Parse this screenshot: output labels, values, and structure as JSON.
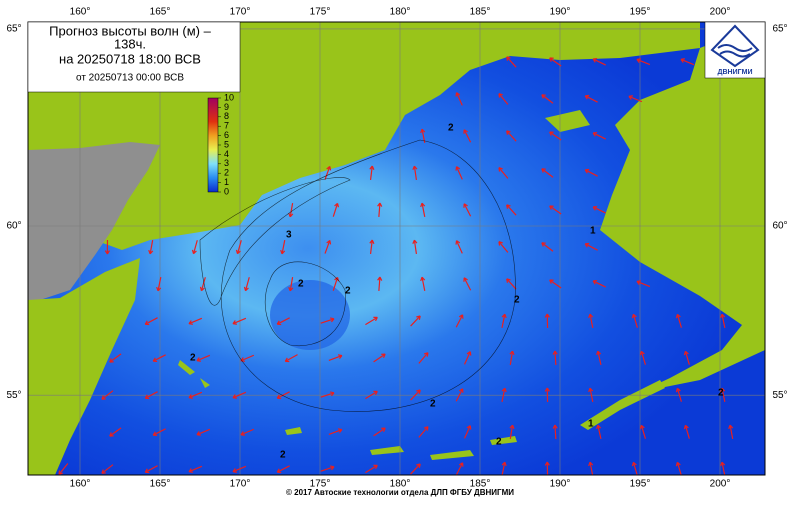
{
  "header": {
    "title_lines": [
      "Прогноз высоты волн (м) –",
      "138ч.",
      "на 20250718 18:00 ВСВ",
      "от 20250713 00:00 ВСВ"
    ]
  },
  "colorbar": {
    "ticks": [
      10,
      9,
      8,
      7,
      6,
      5,
      4,
      3,
      2,
      1,
      0
    ]
  },
  "grid": {
    "lon": [
      {
        "value": 160,
        "label": "160°"
      },
      {
        "value": 165,
        "label": "165°"
      },
      {
        "value": 170,
        "label": "170°"
      },
      {
        "value": 175,
        "label": "175°"
      },
      {
        "value": 180,
        "label": "180°"
      },
      {
        "value": 185,
        "label": "185°"
      },
      {
        "value": 190,
        "label": "190°"
      },
      {
        "value": 195,
        "label": "195°"
      },
      {
        "value": 200,
        "label": "200°"
      }
    ],
    "lat": [
      {
        "value": 65,
        "label": "65°"
      },
      {
        "value": 60,
        "label": "60°"
      },
      {
        "value": 55,
        "label": "55°"
      }
    ]
  },
  "contour_labels": [
    "2",
    "3",
    "2",
    "2",
    "2",
    "2",
    "2",
    "2",
    "2",
    "1",
    "1",
    "2"
  ],
  "logo": {
    "label": "ДВНИГМИ"
  },
  "footer": "© 2017 Автоские технологии отдела ДЛП ФГБУ ДВНИГМИ"
}
